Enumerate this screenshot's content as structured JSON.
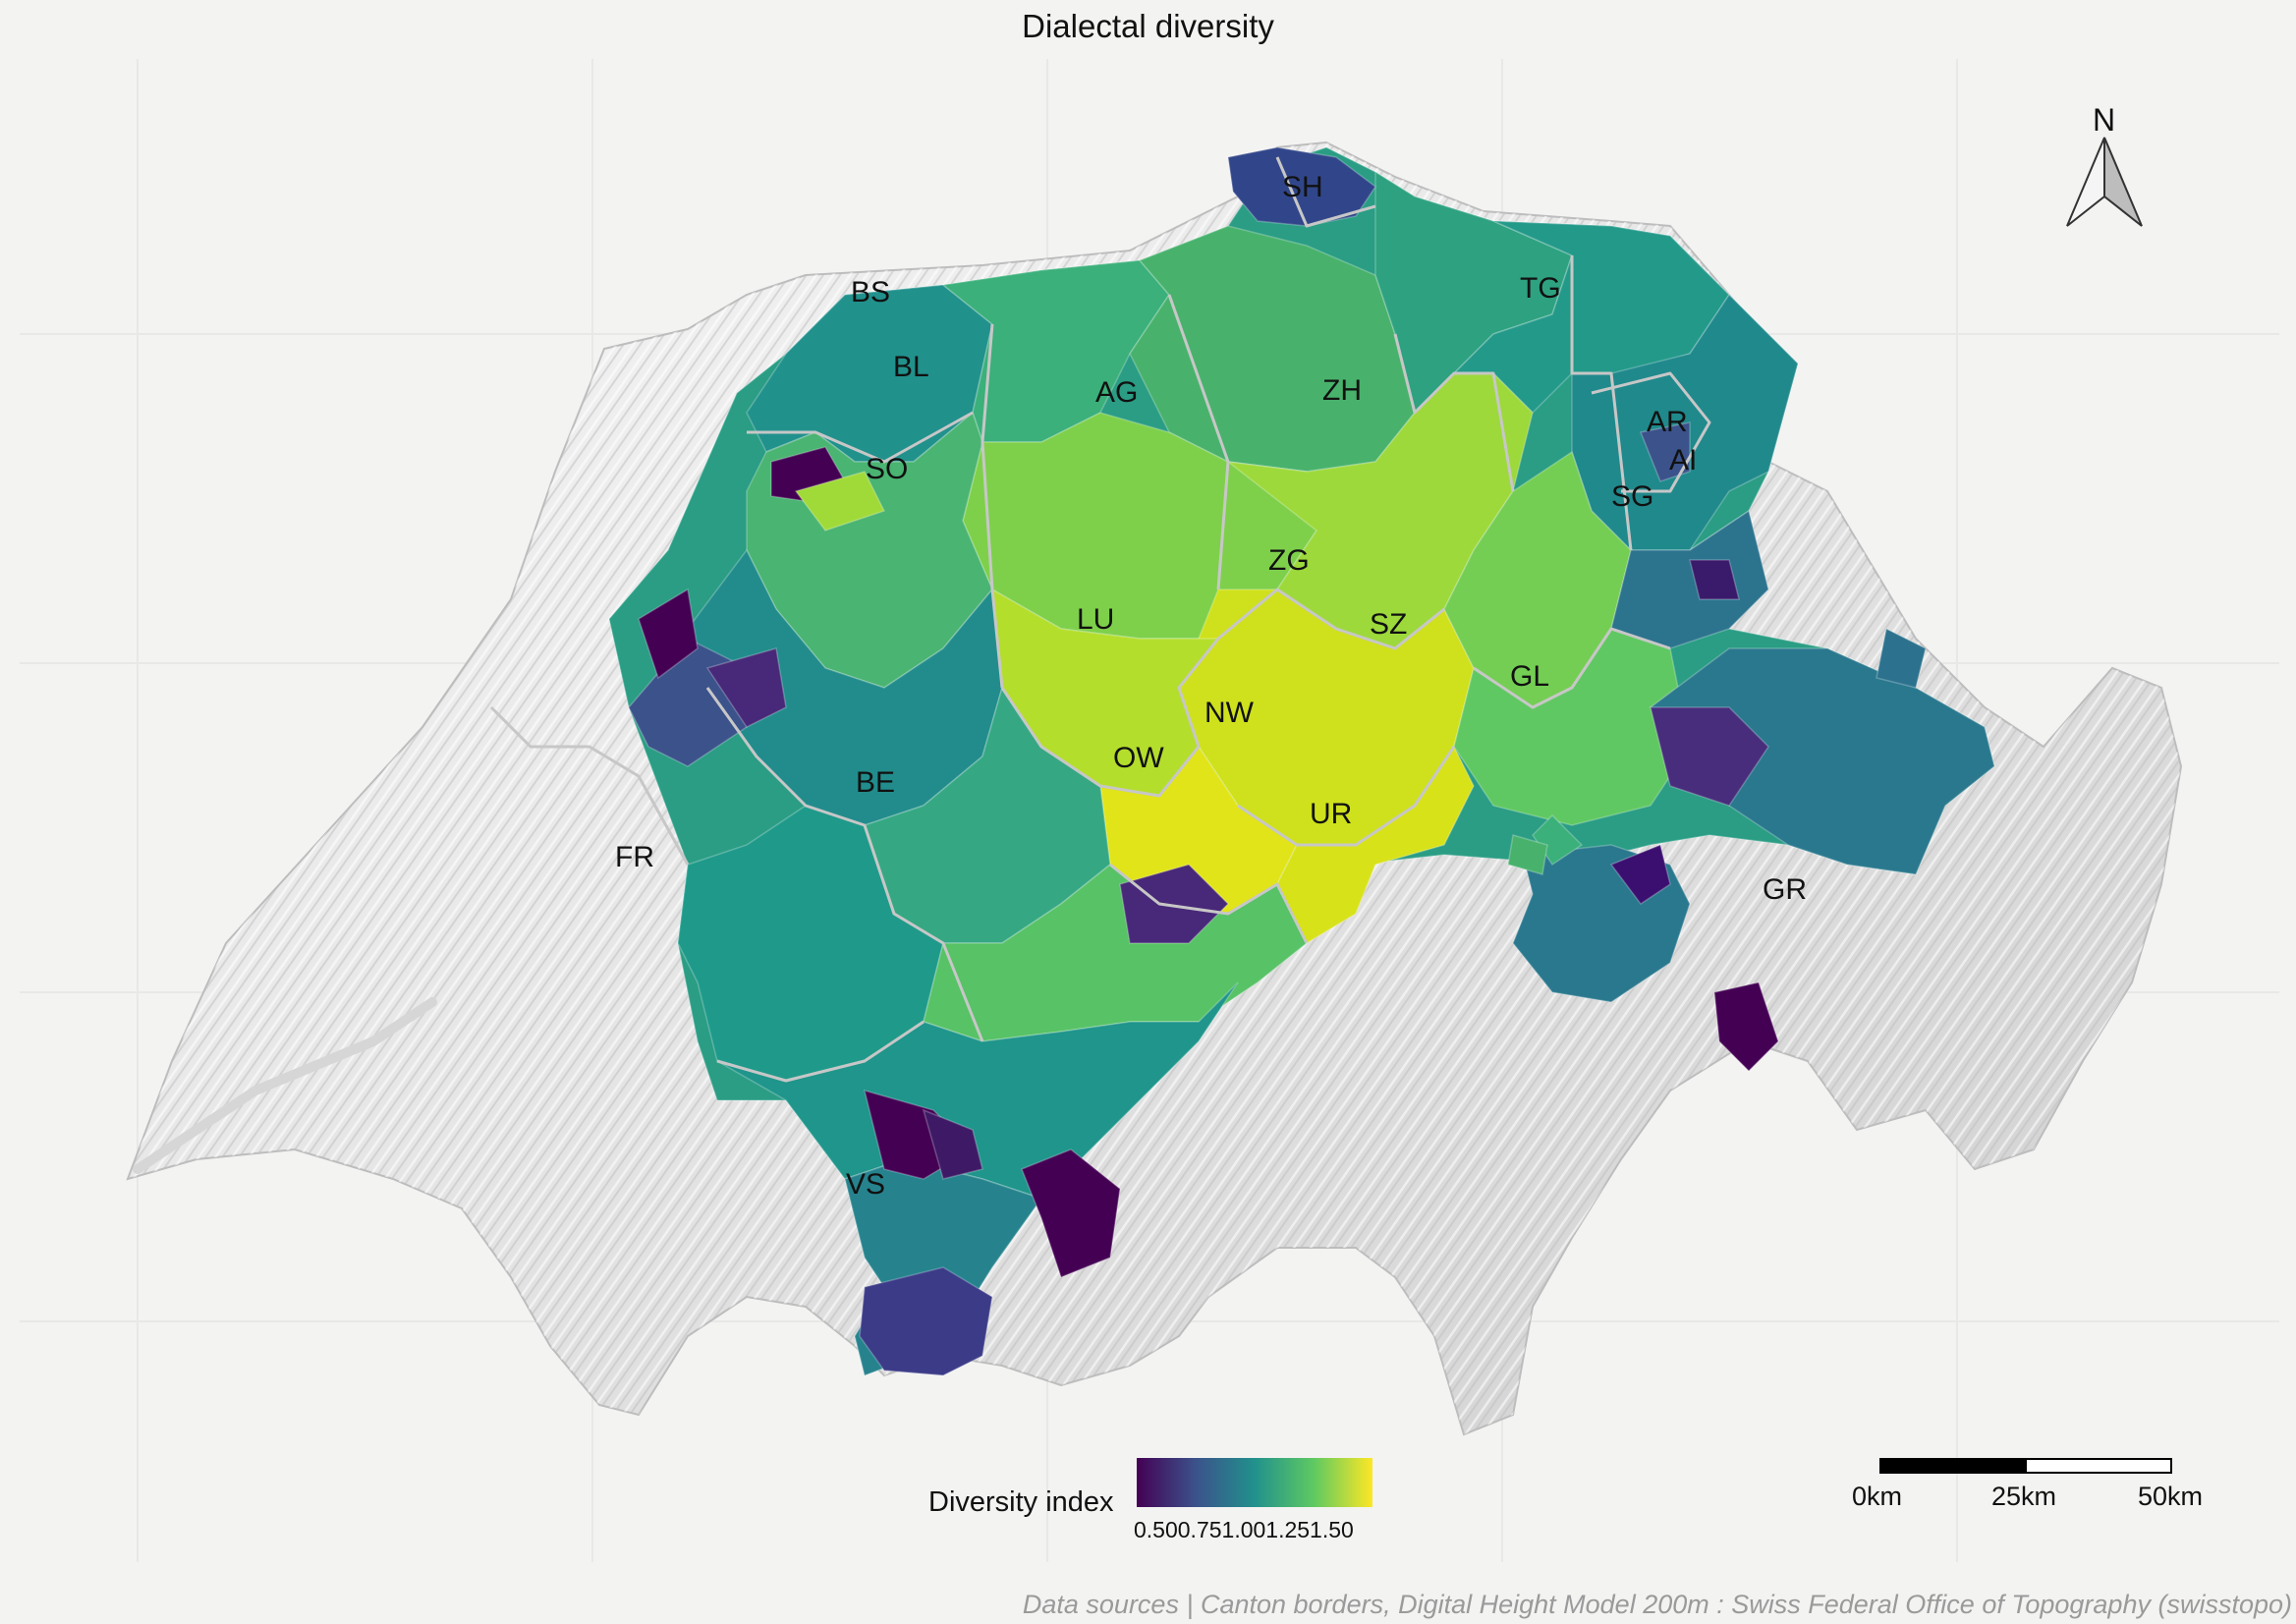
{
  "title": "Dialectal diversity",
  "north_arrow": {
    "label": "N",
    "icon": "north-arrow-icon"
  },
  "legend": {
    "title": "Diversity index",
    "ticks": [
      "0.50",
      "0.75",
      "1.00",
      "1.25",
      "1.50"
    ],
    "ticks_text": "0.500.751.001.251.50",
    "colors": [
      "#440154",
      "#3b528b",
      "#21918c",
      "#5ec962",
      "#fde725"
    ]
  },
  "scale_bar": {
    "labels": [
      "0km",
      "25km",
      "50km"
    ]
  },
  "cantons": {
    "SH": "SH",
    "BS": "BS",
    "BL": "BL",
    "TG": "TG",
    "AG": "AG",
    "ZH": "ZH",
    "AR": "AR",
    "AI": "AI",
    "SO": "SO",
    "SG": "SG",
    "ZG": "ZG",
    "LU": "LU",
    "SZ": "SZ",
    "GL": "GL",
    "NW": "NW",
    "OW": "OW",
    "BE": "BE",
    "UR": "UR",
    "FR": "FR",
    "GR": "GR",
    "VS": "VS"
  },
  "caption": "Data sources | Canton borders, Digital Height Model 200m : Swiss Federal Office of Topography (swisstopo)"
}
